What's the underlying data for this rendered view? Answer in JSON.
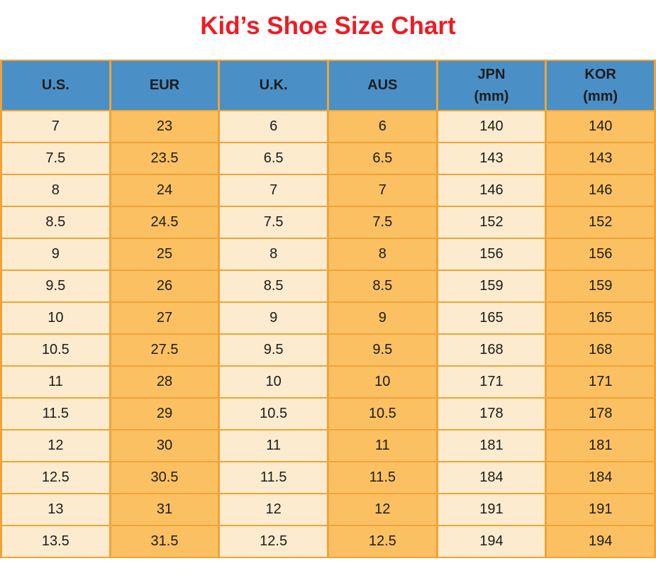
{
  "title": "Kid’s Shoe Size Chart",
  "chart_data": {
    "type": "table",
    "title": "Kid’s Shoe Size Chart",
    "columns": [
      {
        "label": "U.S."
      },
      {
        "label": "EUR"
      },
      {
        "label": "U.K."
      },
      {
        "label": "AUS"
      },
      {
        "label": "JPN",
        "sub": "(mm)"
      },
      {
        "label": "KOR",
        "sub": "(mm)"
      }
    ],
    "rows": [
      [
        "7",
        "23",
        "6",
        "6",
        "140",
        "140"
      ],
      [
        "7.5",
        "23.5",
        "6.5",
        "6.5",
        "143",
        "143"
      ],
      [
        "8",
        "24",
        "7",
        "7",
        "146",
        "146"
      ],
      [
        "8.5",
        "24.5",
        "7.5",
        "7.5",
        "152",
        "152"
      ],
      [
        "9",
        "25",
        "8",
        "8",
        "156",
        "156"
      ],
      [
        "9.5",
        "26",
        "8.5",
        "8.5",
        "159",
        "159"
      ],
      [
        "10",
        "27",
        "9",
        "9",
        "165",
        "165"
      ],
      [
        "10.5",
        "27.5",
        "9.5",
        "9.5",
        "168",
        "168"
      ],
      [
        "11",
        "28",
        "10",
        "10",
        "171",
        "171"
      ],
      [
        "11.5",
        "29",
        "10.5",
        "10.5",
        "178",
        "178"
      ],
      [
        "12",
        "30",
        "11",
        "11",
        "181",
        "181"
      ],
      [
        "12.5",
        "30.5",
        "11.5",
        "11.5",
        "184",
        "184"
      ],
      [
        "13",
        "31",
        "12",
        "12",
        "191",
        "191"
      ],
      [
        "13.5",
        "31.5",
        "12.5",
        "12.5",
        "194",
        "194"
      ]
    ]
  },
  "colors": {
    "title_red": "#ed1c24",
    "header_blue": "#4a90c6",
    "cell_cream": "#fcebce",
    "cell_orange": "#fbc061",
    "border_orange": "#f0a437",
    "text_dark": "#1c1c1c"
  }
}
